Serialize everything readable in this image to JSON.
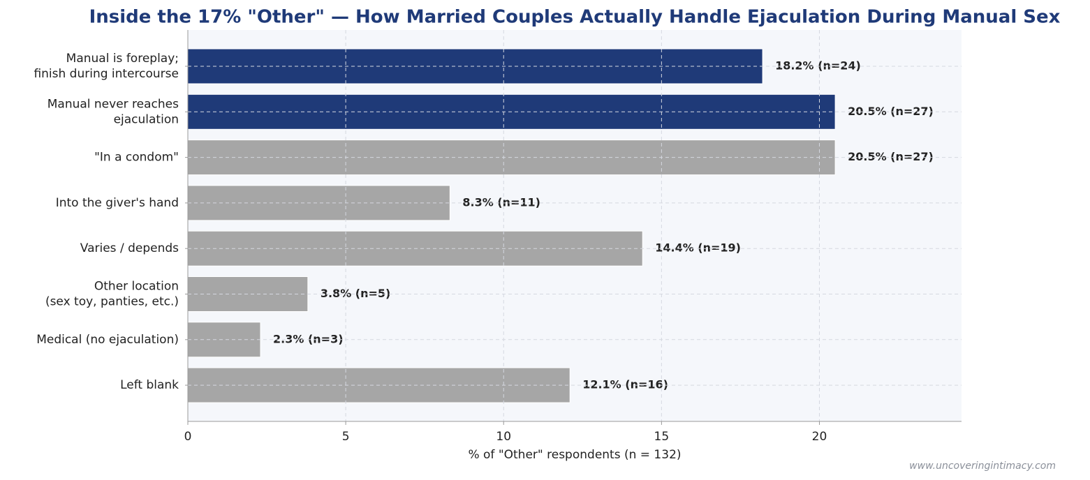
{
  "chart_data": {
    "type": "barh",
    "title": "Inside the 17% \"Other\" — How Married Couples Actually Handle Ejaculation During Manual Sex",
    "categories": [
      "Manual is foreplay;\nfinish during intercourse",
      "Manual never reaches\nejaculation",
      "\"In a condom\"",
      "Into the giver's hand",
      "Varies / depends",
      "Other location\n(sex toy, panties, etc.)",
      "Medical (no ejaculation)",
      "Left blank"
    ],
    "values": [
      18.2,
      20.5,
      20.5,
      8.3,
      14.4,
      3.8,
      2.3,
      12.1
    ],
    "value_labels": [
      "18.2%  (n=24)",
      "20.5%  (n=27)",
      "20.5%  (n=27)",
      "8.3%  (n=11)",
      "14.4%  (n=19)",
      "3.8%  (n=5)",
      "2.3%  (n=3)",
      "12.1%  (n=16)"
    ],
    "colors": [
      "#1f3a78",
      "#1f3a78",
      "#a6a6a6",
      "#a6a6a6",
      "#a6a6a6",
      "#a6a6a6",
      "#a6a6a6",
      "#a6a6a6"
    ],
    "xlabel": "% of \"Other\" respondents (n = 132)",
    "xlim": [
      0,
      24.5
    ],
    "xticks": [
      0,
      5,
      10,
      15,
      20
    ],
    "grid": true,
    "watermark": "www.uncoveringintimacy.com"
  }
}
